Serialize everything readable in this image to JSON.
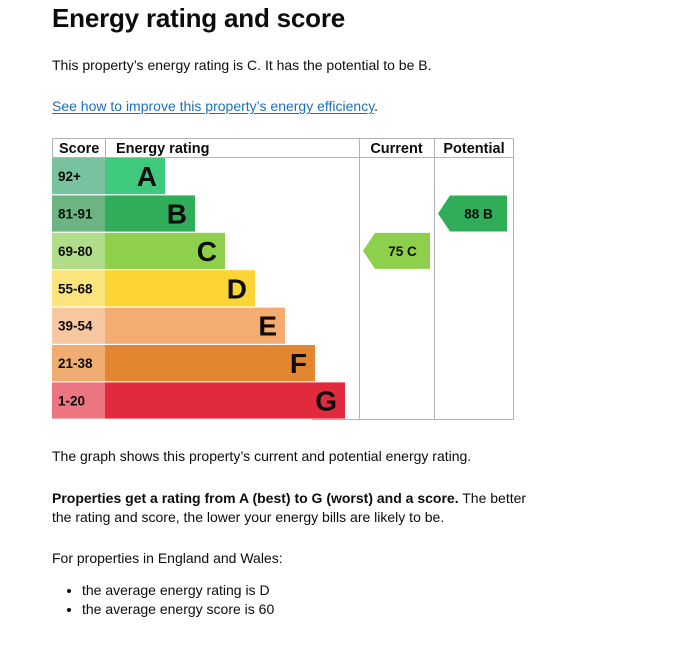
{
  "page": {
    "title": "Energy rating and score",
    "summary": "This property’s energy rating is C. It has the potential to be B.",
    "improve_link": "See how to improve this property’s energy efficiency",
    "graph_caption": "The graph shows this property’s current and potential energy rating.",
    "rating_bold": "Properties get a rating from A (best) to G (worst) and a score.",
    "rating_rest": " The better the rating and score, the lower your energy bills are likely to be.",
    "region_intro": "For properties in England and Wales:",
    "averages": [
      "the average energy rating is D",
      "the average energy score is 60"
    ]
  },
  "chart_data": {
    "type": "bar",
    "headers": {
      "score": "Score",
      "rating": "Energy rating",
      "current": "Current",
      "potential": "Potential"
    },
    "bands": [
      {
        "letter": "A",
        "range": "92+",
        "color": "#3ec97e",
        "score_color": "#78c2a0"
      },
      {
        "letter": "B",
        "range": "81-91",
        "color": "#2fad58",
        "score_color": "#6cb583"
      },
      {
        "letter": "C",
        "range": "69-80",
        "color": "#8ecf4c",
        "score_color": "#b0dd8a"
      },
      {
        "letter": "D",
        "range": "55-68",
        "color": "#fcd535",
        "score_color": "#fce47c"
      },
      {
        "letter": "E",
        "range": "39-54",
        "color": "#f4ac71",
        "score_color": "#f7c7a0"
      },
      {
        "letter": "F",
        "range": "21-38",
        "color": "#e4852f",
        "score_color": "#efab70"
      },
      {
        "letter": "G",
        "range": "1-20",
        "color": "#e12a3d",
        "score_color": "#ec7582"
      }
    ],
    "current": {
      "score": 75,
      "letter": "C",
      "label": "75 C",
      "color": "#8ecf4c"
    },
    "potential": {
      "score": 88,
      "letter": "B",
      "label": "88 B",
      "color": "#2fad58"
    }
  }
}
